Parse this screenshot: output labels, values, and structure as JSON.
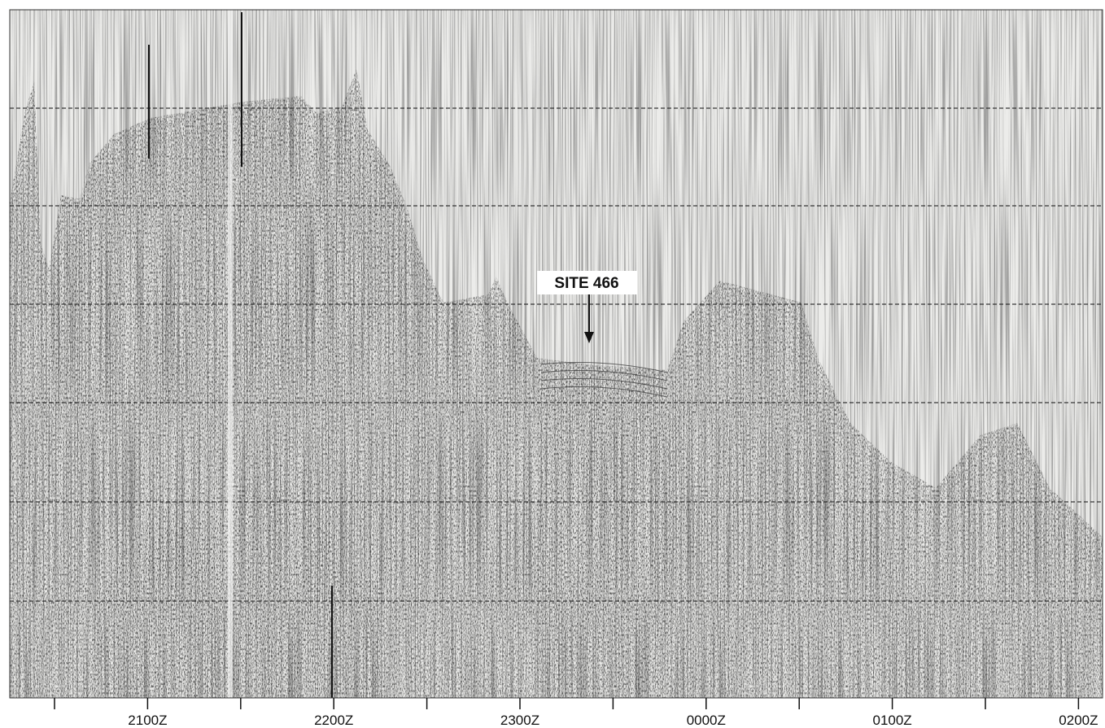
{
  "annotation": "SITE 466",
  "time_labels": [
    "2100Z",
    "2200Z",
    "2300Z",
    "0000Z",
    "0100Z",
    "0200Z"
  ]
}
